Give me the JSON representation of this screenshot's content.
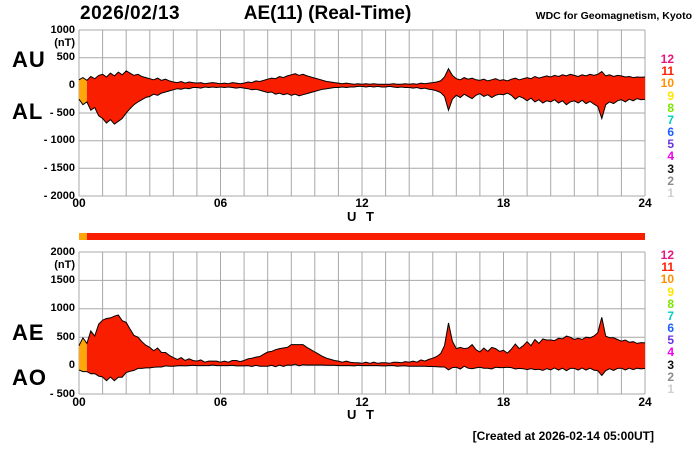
{
  "header": {
    "date": "2026/02/13",
    "title": "AE(11) (Real-Time)",
    "source": "WDC for Geomagnetism, Kyoto"
  },
  "footer": {
    "created": "[Created at 2026-02-14 05:00UT]"
  },
  "colors": {
    "area_fill": "#fa1e00",
    "area_fill_start": "#ffa60a",
    "trace": "#000000",
    "grid": "#a8a8a8",
    "background": "#ffffff",
    "text": "#000000"
  },
  "legend": {
    "values": [
      "12",
      "11",
      "10",
      "9",
      "8",
      "7",
      "6",
      "5",
      "4",
      "3",
      "2",
      "1"
    ],
    "colors": [
      "#e8157f",
      "#ff1e00",
      "#ff9000",
      "#ffe400",
      "#7ce600",
      "#00cfc4",
      "#1f5fff",
      "#6a35e0",
      "#f000f0",
      "#101010",
      "#8c8c8c",
      "#cfcfcf"
    ]
  },
  "panels": [
    {
      "left_labels": [
        "AU",
        "AL"
      ],
      "unit": "(nT)",
      "xlabel": "U T"
    },
    {
      "left_labels": [
        "AE",
        "AO"
      ],
      "unit": "(nT)",
      "xlabel": "U T"
    }
  ],
  "quality_bar": {
    "segments": [
      {
        "from": 0,
        "to": 0.333,
        "color_key": "area_fill_start"
      },
      {
        "from": 0.333,
        "to": 24,
        "color_key": "area_fill"
      }
    ]
  },
  "chart_data": [
    {
      "type": "area",
      "name": "AU-AL panel",
      "xlabel": "U T",
      "ylabel": "(nT)",
      "xlim": [
        0,
        24
      ],
      "ylim": [
        -2000,
        1000
      ],
      "x_step_minutes": 10,
      "grid": true,
      "x_ticks": [
        "00",
        "06",
        "12",
        "18",
        "24"
      ],
      "y_ticks": [
        "1000",
        "500",
        "0",
        "- 500",
        "- 1000",
        "- 1500",
        "- 2000"
      ],
      "series": [
        {
          "name": "AU",
          "values": [
            100,
            140,
            90,
            160,
            120,
            180,
            200,
            150,
            220,
            170,
            240,
            190,
            260,
            220,
            180,
            200,
            160,
            140,
            120,
            100,
            130,
            90,
            110,
            80,
            60,
            50,
            70,
            40,
            60,
            50,
            40,
            50,
            30,
            40,
            50,
            40,
            30,
            40,
            30,
            50,
            40,
            30,
            40,
            60,
            50,
            80,
            70,
            90,
            110,
            130,
            120,
            160,
            140,
            170,
            190,
            210,
            180,
            200,
            170,
            150,
            130,
            110,
            90,
            70,
            60,
            50,
            40,
            30,
            40,
            30,
            20,
            30,
            20,
            30,
            20,
            30,
            20,
            20,
            20,
            20,
            30,
            20,
            20,
            30,
            20,
            30,
            20,
            40,
            30,
            40,
            50,
            60,
            80,
            150,
            300,
            180,
            120,
            100,
            140,
            110,
            130,
            100,
            90,
            110,
            80,
            100,
            120,
            90,
            100,
            80,
            110,
            130,
            100,
            120,
            140,
            120,
            160,
            130,
            150,
            170,
            150,
            180,
            160,
            190,
            170,
            200,
            180,
            160,
            190,
            170,
            200,
            180,
            200,
            250,
            170,
            190,
            160,
            180,
            170,
            150,
            160,
            140,
            150,
            145,
            150
          ]
        },
        {
          "name": "AL",
          "values": [
            -250,
            -350,
            -300,
            -450,
            -400,
            -550,
            -600,
            -680,
            -620,
            -700,
            -650,
            -600,
            -500,
            -420,
            -350,
            -300,
            -260,
            -220,
            -200,
            -160,
            -180,
            -140,
            -120,
            -100,
            -80,
            -60,
            -70,
            -50,
            -60,
            -40,
            -40,
            -50,
            -30,
            -40,
            -30,
            -40,
            -30,
            -40,
            -30,
            -40,
            -50,
            -40,
            -50,
            -60,
            -80,
            -70,
            -90,
            -110,
            -130,
            -120,
            -160,
            -140,
            -170,
            -150,
            -180,
            -160,
            -190,
            -170,
            -150,
            -130,
            -110,
            -90,
            -70,
            -60,
            -50,
            -40,
            -40,
            -30,
            -40,
            -30,
            -30,
            -20,
            -20,
            -30,
            -20,
            -30,
            -20,
            -30,
            -30,
            -20,
            -30,
            -40,
            -30,
            -40,
            -40,
            -50,
            -40,
            -60,
            -50,
            -70,
            -80,
            -100,
            -130,
            -200,
            -450,
            -250,
            -180,
            -220,
            -160,
            -200,
            -240,
            -180,
            -150,
            -200,
            -170,
            -220,
            -180,
            -160,
            -170,
            -140,
            -180,
            -250,
            -200,
            -230,
            -280,
            -230,
            -300,
            -260,
            -320,
            -280,
            -300,
            -260,
            -320,
            -280,
            -350,
            -300,
            -280,
            -320,
            -270,
            -330,
            -290,
            -340,
            -380,
            -600,
            -350,
            -300,
            -330,
            -280,
            -260,
            -300,
            -250,
            -280,
            -240,
            -260,
            -250
          ]
        }
      ]
    },
    {
      "type": "area",
      "name": "AE-AO panel",
      "xlabel": "U T",
      "ylabel": "(nT)",
      "xlim": [
        0,
        24
      ],
      "ylim": [
        -500,
        2000
      ],
      "x_step_minutes": 10,
      "grid": true,
      "x_ticks": [
        "00",
        "06",
        "12",
        "18",
        "24"
      ],
      "y_ticks": [
        "2000",
        "1500",
        "1000",
        "500",
        "0",
        "- 500"
      ],
      "series": [
        {
          "name": "AE",
          "values": [
            350,
            490,
            390,
            610,
            520,
            730,
            800,
            830,
            840,
            870,
            890,
            790,
            760,
            640,
            530,
            500,
            420,
            360,
            320,
            260,
            310,
            230,
            230,
            180,
            140,
            110,
            140,
            90,
            120,
            90,
            80,
            100,
            60,
            80,
            80,
            80,
            60,
            80,
            60,
            90,
            90,
            70,
            90,
            120,
            130,
            150,
            160,
            200,
            240,
            250,
            280,
            300,
            310,
            320,
            370,
            370,
            370,
            370,
            320,
            280,
            240,
            200,
            160,
            130,
            110,
            90,
            80,
            60,
            80,
            60,
            50,
            50,
            40,
            60,
            40,
            60,
            40,
            50,
            50,
            40,
            60,
            60,
            50,
            70,
            60,
            80,
            60,
            100,
            80,
            110,
            130,
            160,
            210,
            350,
            750,
            430,
            300,
            320,
            300,
            310,
            370,
            280,
            240,
            310,
            250,
            320,
            300,
            250,
            270,
            220,
            290,
            380,
            300,
            350,
            420,
            350,
            460,
            390,
            470,
            450,
            450,
            440,
            480,
            470,
            520,
            500,
            460,
            480,
            460,
            500,
            490,
            520,
            580,
            850,
            520,
            490,
            490,
            460,
            430,
            450,
            410,
            420,
            390,
            405,
            400
          ]
        },
        {
          "name": "AO",
          "values": [
            -75,
            -105,
            -105,
            -145,
            -140,
            -185,
            -200,
            -265,
            -200,
            -265,
            -205,
            -205,
            -120,
            -100,
            -85,
            -50,
            -50,
            -40,
            -40,
            -30,
            -25,
            -25,
            -5,
            -10,
            -10,
            -5,
            0,
            -5,
            0,
            5,
            0,
            0,
            0,
            0,
            10,
            0,
            0,
            0,
            0,
            5,
            -5,
            -5,
            -5,
            0,
            -15,
            5,
            -10,
            -10,
            -10,
            5,
            -20,
            10,
            -15,
            10,
            5,
            25,
            -5,
            15,
            10,
            10,
            10,
            10,
            10,
            5,
            5,
            5,
            0,
            0,
            0,
            0,
            -5,
            5,
            0,
            0,
            0,
            0,
            0,
            -5,
            -5,
            0,
            0,
            -10,
            -5,
            -5,
            -10,
            -10,
            -10,
            -10,
            -10,
            -15,
            -15,
            -20,
            -25,
            -25,
            -75,
            -35,
            -30,
            -60,
            -10,
            -45,
            -55,
            -40,
            -30,
            -45,
            -45,
            -60,
            -30,
            -35,
            -35,
            -30,
            -35,
            -60,
            -50,
            -55,
            -70,
            -55,
            -70,
            -65,
            -85,
            -55,
            -75,
            -40,
            -80,
            -45,
            -90,
            -50,
            -50,
            -80,
            -40,
            -80,
            -45,
            -80,
            -90,
            -175,
            -90,
            -55,
            -85,
            -50,
            -45,
            -75,
            -45,
            -70,
            -45,
            -58,
            -50
          ]
        }
      ]
    }
  ]
}
